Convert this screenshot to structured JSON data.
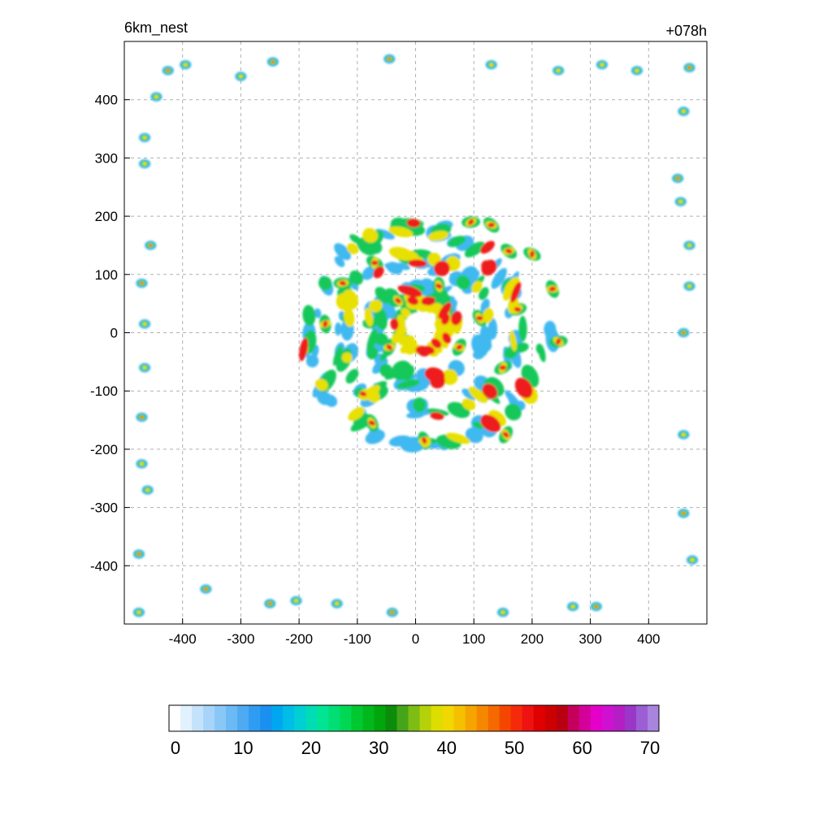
{
  "chart_data": {
    "type": "heatmap",
    "title_left": "6km_nest",
    "title_right": "+078h",
    "xlabel": "",
    "ylabel": "",
    "xlim": [
      -500,
      500
    ],
    "ylim": [
      -500,
      500
    ],
    "x_ticks": [
      -400,
      -300,
      -200,
      -100,
      0,
      100,
      200,
      300,
      400
    ],
    "y_ticks": [
      400,
      300,
      200,
      100,
      0,
      -100,
      -200,
      -300,
      -400
    ],
    "grid": true,
    "colorbar": {
      "min": 0,
      "max": 70,
      "tick_labels": [
        0,
        10,
        20,
        30,
        40,
        50,
        60,
        70
      ],
      "colors": [
        "#ffffff",
        "#e1f1fd",
        "#c4e3fb",
        "#a6d5f9",
        "#89c7f7",
        "#6bb9f5",
        "#4daaf3",
        "#2f9cf1",
        "#1a90f0",
        "#00a7f0",
        "#00bde8",
        "#00cfd4",
        "#00dcb4",
        "#00e494",
        "#00de74",
        "#00d854",
        "#00c830",
        "#00b81c",
        "#00a60c",
        "#0b8d0b",
        "#45a51a",
        "#7dbd14",
        "#b5d10a",
        "#dddd00",
        "#f0d800",
        "#f5c000",
        "#f5a400",
        "#f58800",
        "#f56a00",
        "#f54600",
        "#f52a0a",
        "#ee1212",
        "#e00000",
        "#cc0000",
        "#b90010",
        "#c4005c",
        "#d4009a",
        "#e400c8",
        "#d010d0",
        "#b41ec4",
        "#9a36c8",
        "#9c5ed4",
        "#a884de"
      ]
    },
    "features": {
      "storm_center": [
        10,
        10
      ],
      "eye_radius_km": 22,
      "rainband_outer_radius_km": 230
    }
  }
}
